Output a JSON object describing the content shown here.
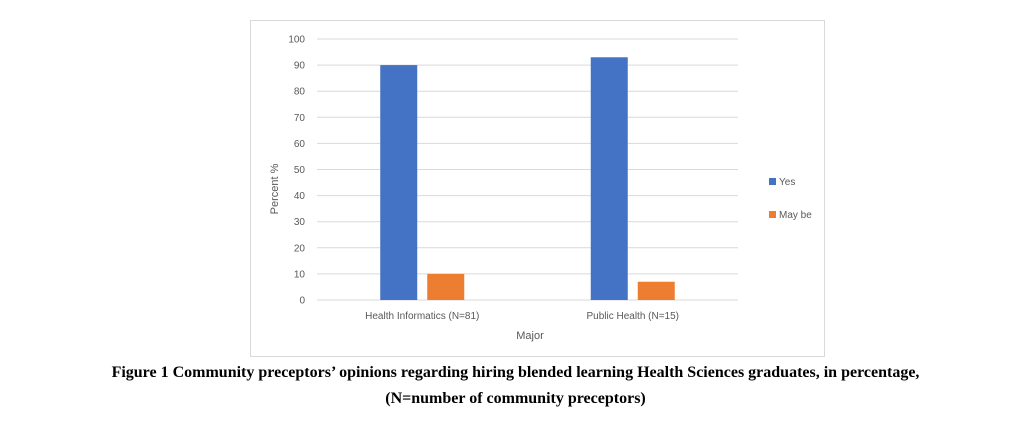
{
  "chart_data": {
    "type": "bar",
    "categories": [
      "Health Informatics  (N=81)",
      "Public Health  (N=15)"
    ],
    "series": [
      {
        "name": "Yes",
        "values": [
          90,
          93
        ],
        "color": "#4472c4"
      },
      {
        "name": "May be",
        "values": [
          10,
          7
        ],
        "color": "#ed7d31"
      }
    ],
    "xlabel": "Major",
    "ylabel": "Percent %",
    "ylim": [
      0,
      100
    ],
    "yticks": [
      0,
      10,
      20,
      30,
      40,
      50,
      60,
      70,
      80,
      90,
      100
    ],
    "grid": true,
    "legend_position": "right"
  },
  "caption": {
    "line1": "Figure 1 Community preceptors’ opinions regarding hiring blended learning Health Sciences graduates, in percentage,",
    "line2": "(N=number of community preceptors)"
  }
}
